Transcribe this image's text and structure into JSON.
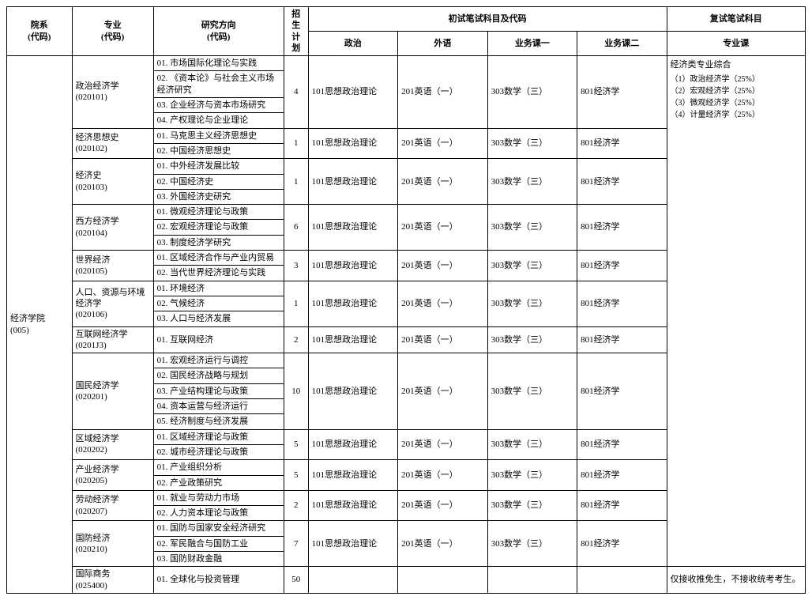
{
  "headers": {
    "dept": "院系",
    "code_label": "(代码)",
    "major": "专业",
    "direction": "研究方向",
    "plan": "招生\n计划",
    "prelim": "初试笔试科目及代码",
    "politics": "政治",
    "foreign": "外语",
    "course1": "业务课一",
    "course2": "业务课二",
    "retest": "复试笔试科目",
    "retest_course": "专业课"
  },
  "dept": {
    "name": "经济学院",
    "code": "(005)"
  },
  "exam": {
    "politics": "101思想政治理论",
    "foreign": "201英语（一）",
    "math": "303数学（三）",
    "econ": "801经济学"
  },
  "retest": {
    "title": "经济类专业综合",
    "items": [
      "（1）政治经济学（25%）",
      "（2）宏观经济学（25%）",
      "（3）微观经济学（25%）",
      "（4）计量经济学（25%）"
    ]
  },
  "majors": [
    {
      "name": "政治经济学",
      "code": "(020101)",
      "plan": "4",
      "dirs": [
        "01. 市场国际化理论与实践",
        "02. 《资本论》与社会主义市场经济研究",
        "03. 企业经济与资本市场研究",
        "04. 产权理论与企业理论"
      ]
    },
    {
      "name": "经济思想史",
      "code": "(020102)",
      "plan": "1",
      "dirs": [
        "01. 马克思主义经济思想史",
        "02. 中国经济思想史"
      ]
    },
    {
      "name": "经济史",
      "code": "(020103)",
      "plan": "1",
      "dirs": [
        "01. 中外经济发展比较",
        "02. 中国经济史",
        "03. 外国经济史研究"
      ]
    },
    {
      "name": "西方经济学",
      "code": "(020104)",
      "plan": "6",
      "dirs": [
        "01. 微观经济理论与政策",
        "02. 宏观经济理论与政策",
        "03. 制度经济学研究"
      ]
    },
    {
      "name": "世界经济",
      "code": "(020105)",
      "plan": "3",
      "dirs": [
        "01. 区域经济合作与产业内贸易",
        "02. 当代世界经济理论与实践"
      ]
    },
    {
      "name": "人口、资源与环境经济学",
      "code": "(020106)",
      "plan": "1",
      "dirs": [
        "01. 环境经济",
        "02. 气候经济",
        "03. 人口与经济发展"
      ]
    },
    {
      "name": "互联网经济学",
      "code": "(0201J3)",
      "plan": "2",
      "dirs": [
        "01. 互联网经济"
      ]
    },
    {
      "name": "国民经济学",
      "code": "(020201)",
      "plan": "10",
      "dirs": [
        "01. 宏观经济运行与调控",
        "02. 国民经济战略与规划",
        "03. 产业结构理论与政策",
        "04. 资本运营与经济运行",
        "05. 经济制度与经济发展"
      ]
    },
    {
      "name": "区域经济学",
      "code": "(020202)",
      "plan": "5",
      "dirs": [
        "01. 区域经济理论与政策",
        "02. 城市经济理论与政策"
      ]
    },
    {
      "name": "产业经济学",
      "code": "(020205)",
      "plan": "5",
      "dirs": [
        "01. 产业组织分析",
        "02. 产业政策研究"
      ]
    },
    {
      "name": "劳动经济学",
      "code": "(020207)",
      "plan": "2",
      "dirs": [
        "01. 就业与劳动力市场",
        "02. 人力资本理论与政策"
      ]
    },
    {
      "name": "国防经济",
      "code": "(020210)",
      "plan": "7",
      "dirs": [
        "01. 国防与国家安全经济研究",
        "02. 军民融合与国防工业",
        "03. 国防财政金融"
      ]
    }
  ],
  "last_major": {
    "name": "国际商务",
    "code": "(025400)",
    "plan": "50",
    "dir": "01. 全球化与投资管理",
    "retest": "仅接收推免生，不接收统考考生。"
  }
}
